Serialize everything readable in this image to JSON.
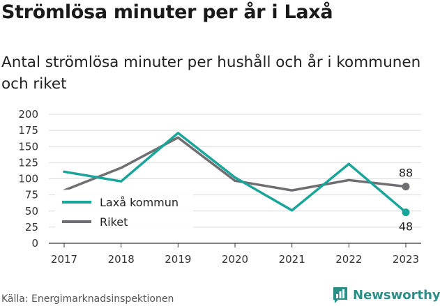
{
  "chart_data": {
    "type": "line",
    "title": "Strömlösa minuter per år i Laxå",
    "subtitle": "Antal strömlösa minuter per hushåll och år i kommunen och riket",
    "x": [
      "2017",
      "2018",
      "2019",
      "2020",
      "2021",
      "2022",
      "2023"
    ],
    "ylim": [
      0,
      200
    ],
    "yticks": [
      0,
      25,
      50,
      75,
      100,
      125,
      150,
      175,
      200
    ],
    "yticklabels": [
      "0",
      "25",
      "50",
      "75",
      "100",
      "125",
      "150",
      "175",
      "200"
    ],
    "grid": "horizontal",
    "legend_position": "bottom-left",
    "series": [
      {
        "name": "Laxå kommun",
        "color": "#1aa59a",
        "values": [
          111,
          96,
          171,
          102,
          51,
          123,
          48
        ],
        "end_label": "48"
      },
      {
        "name": "Riket",
        "color": "#6f6e72",
        "values": [
          82,
          117,
          164,
          97,
          82,
          98,
          88
        ],
        "end_label": "88"
      }
    ]
  },
  "footer": {
    "source": "Källa: Energimarknadsinspektionen",
    "brand": "Newsworthy",
    "brand_color": "#2a8f86",
    "brand_icon": "bar-chart-logo-icon"
  }
}
